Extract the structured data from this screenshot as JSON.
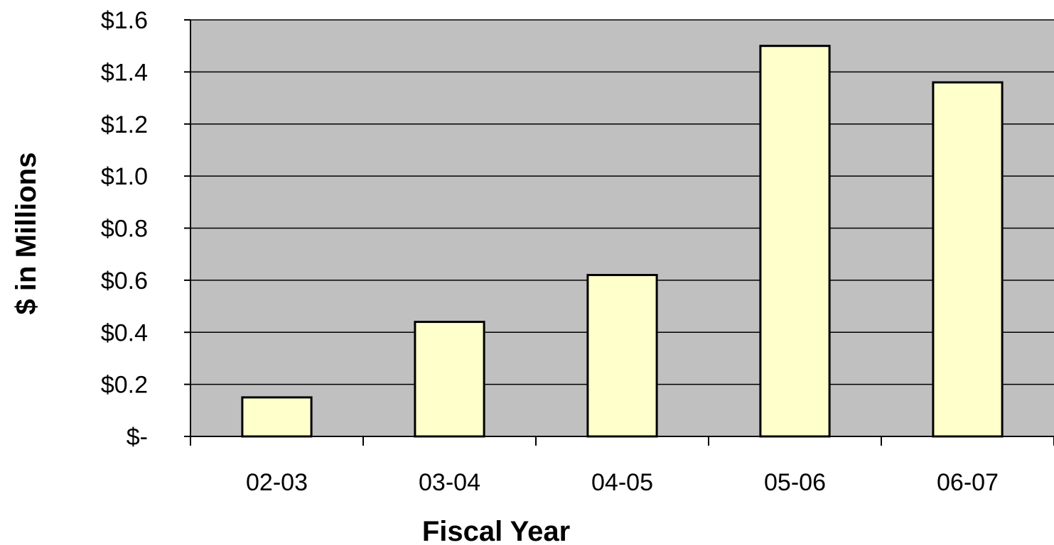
{
  "chart_data": {
    "type": "bar",
    "categories": [
      "02-03",
      "03-04",
      "04-05",
      "05-06",
      "06-07"
    ],
    "values": [
      0.15,
      0.44,
      0.62,
      1.5,
      1.36
    ],
    "xlabel": "Fiscal Year",
    "ylabel": "$ in Millions",
    "ylim": [
      0,
      1.6
    ],
    "yticks": [
      0,
      0.2,
      0.4,
      0.6,
      0.8,
      1.0,
      1.2,
      1.4,
      1.6
    ],
    "ytick_labels": [
      "$-",
      "$0.2",
      "$0.4",
      "$0.6",
      "$0.8",
      "$1.0",
      "$1.2",
      "$1.4",
      "$1.6"
    ],
    "grid": true,
    "legend": "none",
    "colors": {
      "plot_background": "#c0c0c0",
      "bar_fill": "#ffffcc",
      "bar_stroke": "#000000",
      "gridline": "#000000"
    }
  }
}
